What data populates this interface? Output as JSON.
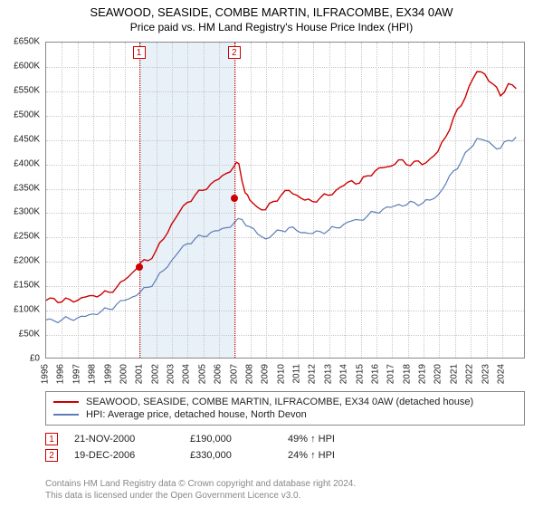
{
  "title": "SEAWOOD, SEASIDE, COMBE MARTIN, ILFRACOMBE, EX34 0AW",
  "subtitle": "Price paid vs. HM Land Registry's House Price Index (HPI)",
  "chart": {
    "type": "line",
    "background_color": "#ffffff",
    "grid_color": "#c8c8c8",
    "border_color": "#888888",
    "shade_color": "#e8f0f8",
    "marker_color": "#cc0000",
    "x_domain": [
      1995,
      2025.5
    ],
    "y_domain": [
      0,
      650000
    ],
    "y_ticks": [
      0,
      50000,
      100000,
      150000,
      200000,
      250000,
      300000,
      350000,
      400000,
      450000,
      500000,
      550000,
      600000,
      650000
    ],
    "y_tick_labels": [
      "£0",
      "£50K",
      "£100K",
      "£150K",
      "£200K",
      "£250K",
      "£300K",
      "£350K",
      "£400K",
      "£450K",
      "£500K",
      "£550K",
      "£600K",
      "£650K"
    ],
    "x_ticks": [
      1995,
      1996,
      1997,
      1998,
      1999,
      2000,
      2001,
      2002,
      2003,
      2004,
      2005,
      2006,
      2007,
      2008,
      2009,
      2010,
      2011,
      2012,
      2013,
      2014,
      2015,
      2016,
      2017,
      2018,
      2019,
      2020,
      2021,
      2022,
      2023,
      2024
    ],
    "shaded_spans": [
      [
        2000.9,
        2006.96
      ]
    ],
    "marker_lines": [
      2000.9,
      2006.96
    ],
    "marker_points": [
      {
        "id": "1",
        "x": 2000.9,
        "y": 190000
      },
      {
        "id": "2",
        "x": 2006.96,
        "y": 330000
      }
    ],
    "series": [
      {
        "name": "property",
        "color": "#cc0000",
        "line_width": 1.4,
        "label": "SEAWOOD, SEASIDE, COMBE MARTIN, ILFRACOMBE, EX34 0AW (detached house)",
        "points": [
          [
            1995,
            118000
          ],
          [
            1995.5,
            122000
          ],
          [
            1996,
            115000
          ],
          [
            1996.5,
            120000
          ],
          [
            1997,
            118000
          ],
          [
            1997.5,
            125000
          ],
          [
            1998,
            128000
          ],
          [
            1998.5,
            130000
          ],
          [
            1999,
            135000
          ],
          [
            1999.5,
            145000
          ],
          [
            2000,
            160000
          ],
          [
            2000.5,
            175000
          ],
          [
            2001,
            195000
          ],
          [
            2001.5,
            200000
          ],
          [
            2002,
            220000
          ],
          [
            2002.5,
            245000
          ],
          [
            2003,
            275000
          ],
          [
            2003.5,
            300000
          ],
          [
            2004,
            320000
          ],
          [
            2004.5,
            335000
          ],
          [
            2005,
            345000
          ],
          [
            2005.5,
            358000
          ],
          [
            2006,
            368000
          ],
          [
            2006.5,
            380000
          ],
          [
            2007,
            395000
          ],
          [
            2007.3,
            400000
          ],
          [
            2007.7,
            340000
          ],
          [
            2008,
            325000
          ],
          [
            2008.5,
            310000
          ],
          [
            2009,
            305000
          ],
          [
            2009.5,
            322000
          ],
          [
            2010,
            335000
          ],
          [
            2010.5,
            345000
          ],
          [
            2011,
            335000
          ],
          [
            2011.5,
            325000
          ],
          [
            2012,
            322000
          ],
          [
            2012.5,
            330000
          ],
          [
            2013,
            335000
          ],
          [
            2013.5,
            345000
          ],
          [
            2014,
            355000
          ],
          [
            2014.5,
            365000
          ],
          [
            2015,
            360000
          ],
          [
            2015.5,
            375000
          ],
          [
            2016,
            385000
          ],
          [
            2016.5,
            392000
          ],
          [
            2017,
            395000
          ],
          [
            2017.5,
            408000
          ],
          [
            2018,
            398000
          ],
          [
            2018.5,
            405000
          ],
          [
            2019,
            398000
          ],
          [
            2019.5,
            410000
          ],
          [
            2020,
            425000
          ],
          [
            2020.5,
            455000
          ],
          [
            2021,
            495000
          ],
          [
            2021.5,
            520000
          ],
          [
            2022,
            560000
          ],
          [
            2022.5,
            590000
          ],
          [
            2023,
            585000
          ],
          [
            2023.5,
            565000
          ],
          [
            2024,
            540000
          ],
          [
            2024.5,
            565000
          ],
          [
            2025,
            555000
          ]
        ]
      },
      {
        "name": "hpi",
        "color": "#5b7db8",
        "line_width": 1.2,
        "label": "HPI: Average price, detached house, North Devon",
        "points": [
          [
            1995,
            78000
          ],
          [
            1995.5,
            76000
          ],
          [
            1996,
            78000
          ],
          [
            1996.5,
            80000
          ],
          [
            1997,
            82000
          ],
          [
            1997.5,
            85000
          ],
          [
            1998,
            90000
          ],
          [
            1998.5,
            95000
          ],
          [
            1999,
            100000
          ],
          [
            1999.5,
            110000
          ],
          [
            2000,
            118000
          ],
          [
            2000.5,
            125000
          ],
          [
            2001,
            135000
          ],
          [
            2001.5,
            145000
          ],
          [
            2002,
            160000
          ],
          [
            2002.5,
            180000
          ],
          [
            2003,
            200000
          ],
          [
            2003.5,
            220000
          ],
          [
            2004,
            235000
          ],
          [
            2004.5,
            245000
          ],
          [
            2005,
            250000
          ],
          [
            2005.5,
            258000
          ],
          [
            2006,
            262000
          ],
          [
            2006.5,
            268000
          ],
          [
            2007,
            278000
          ],
          [
            2007.5,
            285000
          ],
          [
            2008,
            270000
          ],
          [
            2008.5,
            255000
          ],
          [
            2009,
            245000
          ],
          [
            2009.5,
            255000
          ],
          [
            2010,
            262000
          ],
          [
            2010.5,
            268000
          ],
          [
            2011,
            262000
          ],
          [
            2011.5,
            258000
          ],
          [
            2012,
            256000
          ],
          [
            2012.5,
            260000
          ],
          [
            2013,
            262000
          ],
          [
            2013.5,
            268000
          ],
          [
            2014,
            275000
          ],
          [
            2014.5,
            282000
          ],
          [
            2015,
            284000
          ],
          [
            2015.5,
            292000
          ],
          [
            2016,
            300000
          ],
          [
            2016.5,
            306000
          ],
          [
            2017,
            310000
          ],
          [
            2017.5,
            316000
          ],
          [
            2018,
            315000
          ],
          [
            2018.5,
            320000
          ],
          [
            2019,
            318000
          ],
          [
            2019.5,
            325000
          ],
          [
            2020,
            335000
          ],
          [
            2020.5,
            358000
          ],
          [
            2021,
            385000
          ],
          [
            2021.5,
            405000
          ],
          [
            2022,
            430000
          ],
          [
            2022.5,
            452000
          ],
          [
            2023,
            448000
          ],
          [
            2023.5,
            438000
          ],
          [
            2024,
            432000
          ],
          [
            2024.5,
            448000
          ],
          [
            2025,
            455000
          ]
        ]
      }
    ]
  },
  "legend": {
    "items": [
      {
        "color": "#cc0000",
        "text": "SEAWOOD, SEASIDE, COMBE MARTIN, ILFRACOMBE, EX34 0AW (detached house)"
      },
      {
        "color": "#5b7db8",
        "text": "HPI: Average price, detached house, North Devon"
      }
    ]
  },
  "sales": [
    {
      "marker": "1",
      "date": "21-NOV-2000",
      "price": "£190,000",
      "pct": "49% ↑ HPI"
    },
    {
      "marker": "2",
      "date": "19-DEC-2006",
      "price": "£330,000",
      "pct": "24% ↑ HPI"
    }
  ],
  "footer": {
    "line1": "Contains HM Land Registry data © Crown copyright and database right 2024.",
    "line2": "This data is licensed under the Open Government Licence v3.0."
  }
}
